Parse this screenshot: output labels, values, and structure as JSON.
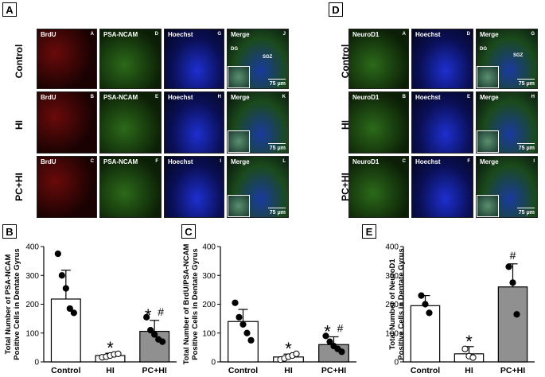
{
  "panels": {
    "A": "A",
    "B": "B",
    "C": "C",
    "D": "D",
    "E": "E"
  },
  "row_labels": {
    "control": "Control",
    "hi": "HI",
    "pchi": "PC+HI"
  },
  "panelA": {
    "stains": [
      "BrdU",
      "PSA-NCAM",
      "Hoechst",
      "Merge"
    ],
    "letters": [
      [
        "A",
        "D",
        "G",
        "J"
      ],
      [
        "B",
        "E",
        "H",
        "K"
      ],
      [
        "C",
        "F",
        "I",
        "L"
      ]
    ]
  },
  "panelD": {
    "stains": [
      "NeuroD1",
      "Hoechst",
      "Merge"
    ],
    "letters": [
      [
        "A",
        "D",
        "G"
      ],
      [
        "B",
        "E",
        "H"
      ],
      [
        "C",
        "F",
        "I"
      ]
    ]
  },
  "annotations": {
    "dg": "DG",
    "sgz": "SGZ",
    "scale": "75 μm"
  },
  "chart_data": [
    {
      "type": "bar",
      "panel": "B",
      "categories": [
        "Control",
        "HI",
        "PC+HI"
      ],
      "values": [
        218,
        22,
        106
      ],
      "errors": [
        100,
        8,
        38
      ],
      "points": [
        [
          375,
          300,
          255,
          185,
          170
        ],
        [
          16,
          18,
          22,
          26,
          28
        ],
        [
          155,
          110,
          95,
          78,
          70
        ]
      ],
      "marks": [
        "",
        "*",
        "* #"
      ],
      "bar_colors": [
        "#ffffff",
        "#ffffff",
        "#909090"
      ],
      "ylabel": "Total Number of PSA-NCAM Positive Cells in Dentate Gyrus",
      "ylim": [
        0,
        400
      ],
      "yticks": [
        0,
        100,
        200,
        300,
        400
      ]
    },
    {
      "type": "bar",
      "panel": "C",
      "categories": [
        "Control",
        "HI",
        "PC+HI"
      ],
      "values": [
        140,
        17,
        60
      ],
      "errors": [
        42,
        10,
        27
      ],
      "points": [
        [
          205,
          155,
          130,
          100,
          75
        ],
        [
          8,
          12,
          18,
          22,
          28
        ],
        [
          90,
          70,
          55,
          45,
          35
        ]
      ],
      "marks": [
        "",
        "*",
        "* #"
      ],
      "bar_colors": [
        "#ffffff",
        "#ffffff",
        "#909090"
      ],
      "ylabel": "Total Number of BrdU/PSA-NCAM Positive Cells in Dentate Gyrus",
      "ylim": [
        0,
        400
      ],
      "yticks": [
        0,
        100,
        200,
        300,
        400
      ]
    },
    {
      "type": "bar",
      "panel": "E",
      "categories": [
        "Control",
        "HI",
        "PC+HI"
      ],
      "values": [
        195,
        28,
        260
      ],
      "errors": [
        35,
        25,
        80
      ],
      "points": [
        [
          230,
          200,
          170
        ],
        [
          45,
          20,
          15
        ],
        [
          330,
          275,
          165
        ]
      ],
      "marks": [
        "",
        "*",
        "#"
      ],
      "bar_colors": [
        "#ffffff",
        "#ffffff",
        "#909090"
      ],
      "ylabel": "Total Number of NeuroD1 Positive Cells in Dentate Gyrus",
      "ylim": [
        0,
        400
      ],
      "yticks": [
        0,
        100,
        200,
        300,
        400
      ]
    }
  ]
}
